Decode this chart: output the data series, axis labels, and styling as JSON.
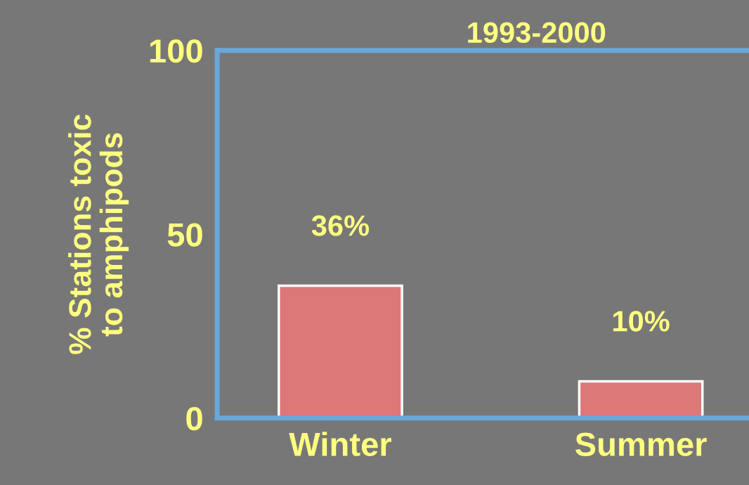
{
  "chart_data": {
    "type": "bar",
    "title": "1993-2000",
    "ylabel": "% Stations toxic\nto amphipods",
    "categories": [
      "Winter",
      "Summer"
    ],
    "values": [
      36,
      10
    ],
    "value_labels": [
      "36%",
      "10%"
    ],
    "color": "#dc7878",
    "ylim": [
      0,
      100
    ],
    "yticks": [
      0,
      50,
      100
    ],
    "grid": false
  }
}
